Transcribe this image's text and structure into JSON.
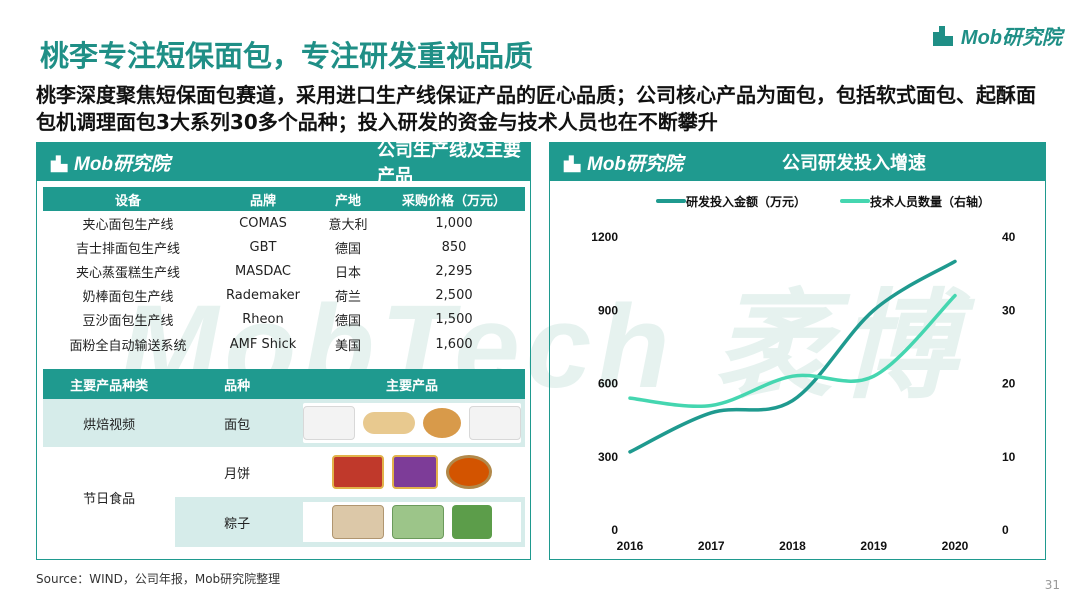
{
  "watermark": "MobTech 袤博",
  "title": "桃李专注短保面包，专注研发重视品质",
  "logo_text": "Mob研究院",
  "subtitle": "桃李深度聚焦短保面包赛道，采用进口生产线保证产品的匠心品质；公司核心产品为面包，包括软式面包、起酥面包机调理面包3大系列30多个品种；投入研发的资金与技术人员也在不断攀升",
  "left_panel": {
    "title": "公司生产线及主要产品",
    "lines_table": {
      "headers": [
        "设备",
        "品牌",
        "产地",
        "采购价格（万元）"
      ],
      "rows": [
        [
          "夹心面包生产线",
          "COMAS",
          "意大利",
          "1,000"
        ],
        [
          "吉士排面包生产线",
          "GBT",
          "德国",
          "850"
        ],
        [
          "夹心蒸蛋糕生产线",
          "MASDAC",
          "日本",
          "2,295"
        ],
        [
          "奶棒面包生产线",
          "Rademaker",
          "荷兰",
          "2,500"
        ],
        [
          "豆沙面包生产线",
          "Rheon",
          "德国",
          "1,500"
        ],
        [
          "面粉全自动输送系统",
          "AMF Shick",
          "美国",
          "1,600"
        ]
      ]
    },
    "products_table": {
      "headers": [
        "主要产品种类",
        "品种",
        "主要产品"
      ],
      "rows": [
        {
          "category": "烘焙视频",
          "variety": "面包"
        },
        {
          "category": "节日食品",
          "variety": "月饼"
        },
        {
          "category": "",
          "variety": "粽子"
        }
      ]
    }
  },
  "right_panel": {
    "title": "公司研发投入增速"
  },
  "chart_data": {
    "type": "line",
    "x": [
      "2016",
      "2017",
      "2018",
      "2019",
      "2020"
    ],
    "series": [
      {
        "name": "研发投入金额（万元）",
        "axis": "left",
        "color": "#1f9a8f",
        "values": [
          320,
          480,
          530,
          900,
          1100
        ]
      },
      {
        "name": "技术人员数量（右轴）",
        "axis": "right",
        "color": "#45d6b0",
        "values": [
          18,
          17,
          21,
          21,
          32
        ]
      }
    ],
    "y_left": {
      "ticks": [
        "0",
        "300",
        "600",
        "900",
        "1200"
      ],
      "range": [
        0,
        1200
      ]
    },
    "y_right": {
      "ticks": [
        "0",
        "10",
        "20",
        "30",
        "40"
      ],
      "range": [
        0,
        40
      ]
    },
    "legend_position": "top",
    "grid": false
  },
  "source": "Source：WIND，公司年报，Mob研究院整理",
  "page_number": "31",
  "colors": {
    "accent": "#1f9a8f",
    "accent_light": "#45d6b0",
    "shade": "#d6ecea"
  }
}
